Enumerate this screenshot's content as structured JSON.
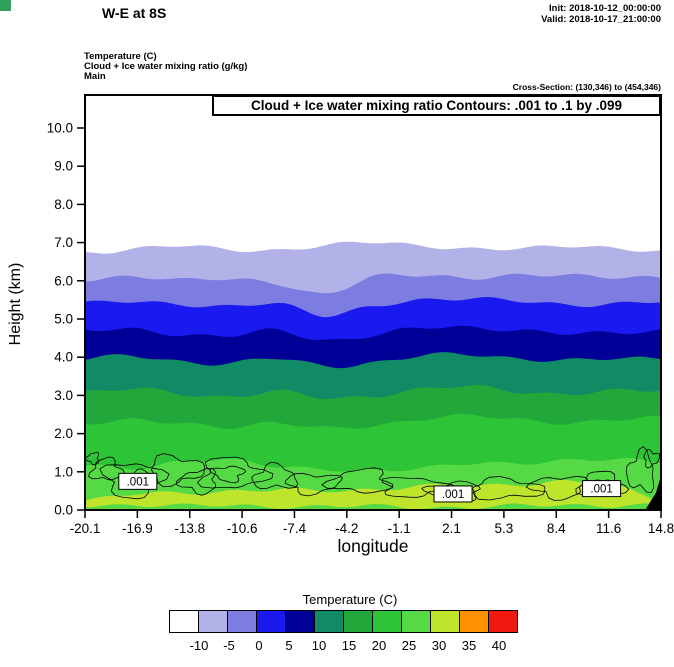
{
  "header": {
    "title": "W-E at 8S",
    "init": "Init: 2018-10-12_00:00:00",
    "valid": "Valid: 2018-10-17_21:00:00",
    "field1": "Temperature (C)",
    "field2": "Cloud + Ice water mixing ratio (g/kg)",
    "field3": "Main",
    "cross_section": "Cross-Section: (130,346) to (454,346)",
    "corner_mark_color": "#2fa05a"
  },
  "plot": {
    "contour_title": "Cloud + Ice water mixing ratio Contours: .001 to .1 by .099"
  },
  "chart_data": {
    "type": "area",
    "subtype": "filled-contour-vertical-cross-section",
    "title": "W-E at 8S",
    "xlabel": "longitude",
    "ylabel": "Height (km)",
    "x_range": [
      -20.1,
      14.8
    ],
    "y_range_km": [
      0.0,
      10.86
    ],
    "x_ticks": [
      "-20.1",
      "-16.9",
      "-13.8",
      "-10.6",
      "-7.4",
      "-4.2",
      "-1.1",
      "2.1",
      "5.3",
      "8.4",
      "11.6",
      "14.8"
    ],
    "y_ticks": [
      "0.0",
      "1.0",
      "2.0",
      "3.0",
      "4.0",
      "5.0",
      "6.0",
      "7.0",
      "8.0",
      "9.0",
      "10.0"
    ],
    "grid": false,
    "isotherms": [
      {
        "temp_c": -10,
        "fill_below": "#b2b2e8",
        "heights_km": [
          6.75,
          6.8,
          6.92,
          6.85,
          6.78,
          6.9,
          7.05,
          6.92,
          6.8,
          6.86,
          6.94,
          6.82,
          6.76
        ]
      },
      {
        "temp_c": -5,
        "fill_below": "#7d7de1",
        "heights_km": [
          6.05,
          6.12,
          6.0,
          6.06,
          5.95,
          5.62,
          6.1,
          6.18,
          6.05,
          6.12,
          6.18,
          6.1,
          6.04
        ]
      },
      {
        "temp_c": 0,
        "fill_below": "#1a1af0",
        "heights_km": [
          5.42,
          5.5,
          5.36,
          5.3,
          5.44,
          5.1,
          5.3,
          5.5,
          5.56,
          5.46,
          5.36,
          5.42,
          5.46
        ]
      },
      {
        "temp_c": 5,
        "fill_below": "#000096",
        "heights_km": [
          4.68,
          4.74,
          4.6,
          4.54,
          4.7,
          4.46,
          4.56,
          4.76,
          4.8,
          4.7,
          4.6,
          4.66,
          4.7
        ]
      },
      {
        "temp_c": 10,
        "fill_below": "#118a66",
        "heights_km": [
          3.96,
          4.02,
          3.9,
          3.84,
          3.96,
          3.78,
          3.86,
          4.02,
          4.08,
          3.98,
          3.9,
          3.96,
          4.0
        ]
      },
      {
        "temp_c": 15,
        "fill_below": "#22a83a",
        "heights_km": [
          3.1,
          3.16,
          3.04,
          2.98,
          3.1,
          2.92,
          3.0,
          3.16,
          3.22,
          3.12,
          3.04,
          3.1,
          3.14
        ]
      },
      {
        "temp_c": 20,
        "fill_below": "#2ec437",
        "heights_km": [
          2.3,
          2.36,
          2.24,
          2.18,
          2.3,
          2.12,
          2.2,
          2.4,
          2.46,
          2.36,
          2.3,
          2.36,
          2.4
        ]
      },
      {
        "temp_c": 25,
        "fill_below": "#55da45",
        "heights_km": [
          1.18,
          1.12,
          1.24,
          1.3,
          1.18,
          1.06,
          1.0,
          1.12,
          1.24,
          1.18,
          1.3,
          1.36,
          1.24
        ]
      }
    ],
    "warm_layer": {
      "temp_c": 30,
      "fill": "#bfe42c",
      "top_km": [
        0.25,
        0.4,
        0.45,
        0.5,
        0.52,
        0.5,
        0.55,
        0.62,
        0.62,
        0.68,
        0.75,
        0.6,
        0.3
      ],
      "bottom_km": [
        0.12,
        0.14,
        0.1,
        0.12,
        0.1,
        0.08,
        0.1,
        0.08,
        0.06,
        0.1,
        0.14,
        0.12,
        0.1
      ]
    },
    "cloud_contours": {
      "contour_values": [
        0.001,
        0.1
      ],
      "line_color": "#000000",
      "blobs": [
        {
          "cx": -18.8,
          "cy": 1.05,
          "rx": 0.9,
          "ry": 0.28
        },
        {
          "cx": -17.2,
          "cy": 0.8,
          "rx": 1.7,
          "ry": 0.45
        },
        {
          "cx": -16.8,
          "cy": 0.8,
          "rx": 0.8,
          "ry": 0.22
        },
        {
          "cx": -14.6,
          "cy": 1.05,
          "rx": 1.6,
          "ry": 0.35
        },
        {
          "cx": -13.2,
          "cy": 0.75,
          "rx": 1.1,
          "ry": 0.3
        },
        {
          "cx": -11.2,
          "cy": 0.95,
          "rx": 1.9,
          "ry": 0.4
        },
        {
          "cx": -11.4,
          "cy": 0.95,
          "rx": 0.9,
          "ry": 0.2
        },
        {
          "cx": -8.6,
          "cy": 0.85,
          "rx": 1.3,
          "ry": 0.3
        },
        {
          "cx": -6.3,
          "cy": 0.7,
          "rx": 1.6,
          "ry": 0.25
        },
        {
          "cx": -3.4,
          "cy": 0.75,
          "rx": 1.8,
          "ry": 0.3
        },
        {
          "cx": -0.2,
          "cy": 0.6,
          "rx": 1.9,
          "ry": 0.25
        },
        {
          "cx": 2.3,
          "cy": 0.5,
          "rx": 1.6,
          "ry": 0.22
        },
        {
          "cx": 5.4,
          "cy": 0.55,
          "rx": 2.2,
          "ry": 0.25
        },
        {
          "cx": 8.6,
          "cy": 0.6,
          "rx": 1.6,
          "ry": 0.28
        },
        {
          "cx": 11.2,
          "cy": 0.65,
          "rx": 1.3,
          "ry": 0.33
        },
        {
          "cx": 11.4,
          "cy": 0.65,
          "rx": 0.6,
          "ry": 0.15
        },
        {
          "cx": 13.6,
          "cy": 1.0,
          "rx": 0.8,
          "ry": 0.5
        },
        {
          "cx": 14.2,
          "cy": 1.35,
          "rx": 0.45,
          "ry": 0.2
        },
        {
          "cx": -19.6,
          "cy": 1.35,
          "rx": 0.35,
          "ry": 0.15
        }
      ],
      "labels": [
        {
          "x_deg": -16.9,
          "y_km": 0.75,
          "text": ".001"
        },
        {
          "x_deg": 2.2,
          "y_km": 0.42,
          "text": ".001"
        },
        {
          "x_deg": 11.2,
          "y_km": 0.56,
          "text": ".001"
        }
      ]
    },
    "terrain": {
      "color": "#000000",
      "polygon_deg_km": [
        [
          13.85,
          0.0
        ],
        [
          14.2,
          0.25
        ],
        [
          14.5,
          0.45
        ],
        [
          14.8,
          0.9
        ],
        [
          14.8,
          0.0
        ]
      ]
    },
    "colorbar": {
      "title": "Temperature  (C)",
      "tick_labels": [
        "-10",
        "-5",
        "0",
        "5",
        "10",
        "15",
        "20",
        "25",
        "30",
        "35",
        "40"
      ],
      "colors": [
        "#ffffff",
        "#b2b2e8",
        "#7d7de1",
        "#1a1af0",
        "#000096",
        "#118a66",
        "#22a83a",
        "#2ec437",
        "#55da45",
        "#bfe42c",
        "#ff9000",
        "#f01810"
      ]
    }
  }
}
